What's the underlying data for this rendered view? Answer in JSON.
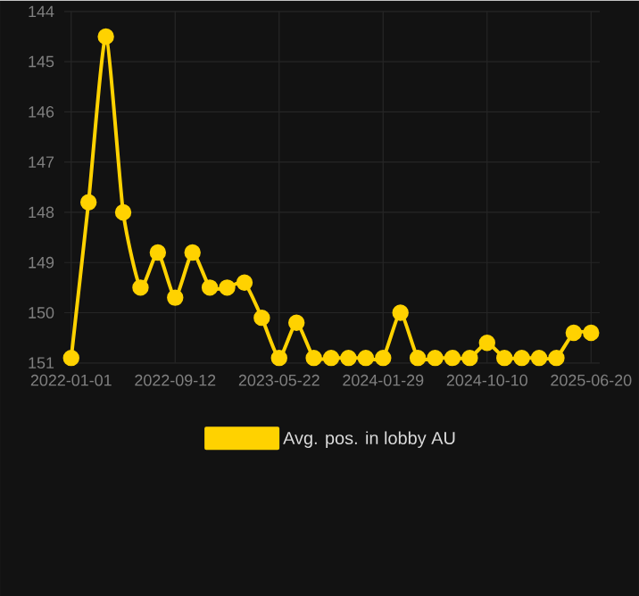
{
  "chart_data": {
    "type": "line",
    "categories": [
      "2022-01-01",
      null,
      null,
      null,
      null,
      null,
      "2022-09-12",
      null,
      null,
      null,
      null,
      null,
      "2023-05-22",
      null,
      null,
      null,
      null,
      null,
      "2024-01-29",
      null,
      null,
      null,
      null,
      null,
      "2024-10-10",
      null,
      null,
      null,
      null,
      null,
      "2025-06-20"
    ],
    "series": [
      {
        "name": "Avg. pos. in lobby AU",
        "color": "#ffd200",
        "values": [
          150.9,
          147.8,
          144.5,
          148.0,
          149.5,
          148.8,
          149.7,
          148.8,
          149.5,
          149.5,
          149.4,
          150.1,
          150.9,
          150.2,
          150.9,
          150.9,
          150.9,
          150.9,
          150.9,
          150.0,
          150.9,
          150.9,
          150.9,
          150.9,
          150.6,
          150.9,
          150.9,
          150.9,
          150.9,
          150.4,
          150.4
        ]
      }
    ],
    "ylim": [
      151,
      144
    ],
    "yticks": [
      144,
      145,
      146,
      147,
      148,
      149,
      150,
      151
    ],
    "grid": true,
    "legend": "bottom",
    "marker": "circle",
    "line_style": "solid"
  }
}
